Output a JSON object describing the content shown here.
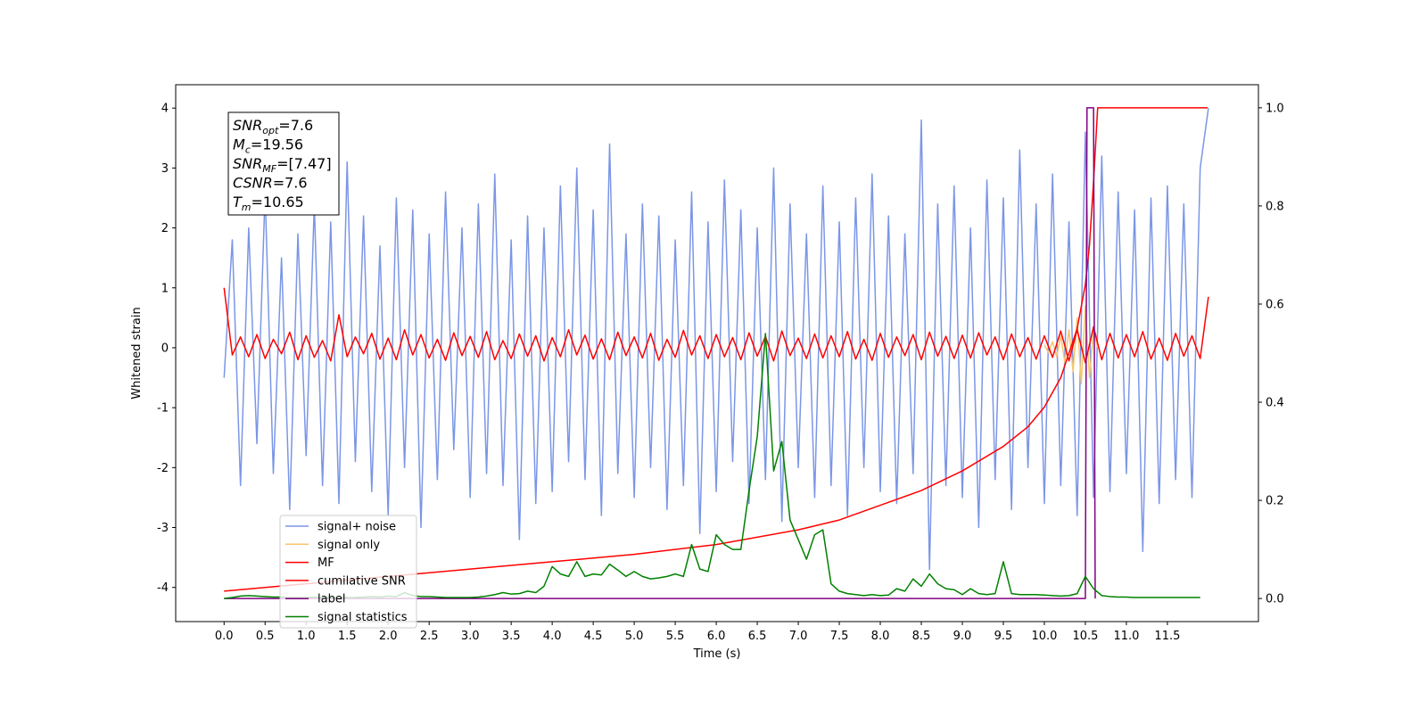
{
  "chart_data": {
    "type": "line",
    "xlabel": "Time (s)",
    "ylabel": "Whitened strain",
    "xlim": [
      -0.59,
      12.61
    ],
    "ylim": [
      -4.57,
      4.39
    ],
    "y2lim": [
      -0.047,
      1.047
    ],
    "xticks": [
      {
        "value": 0,
        "label": "0.0"
      },
      0.5,
      {
        "value": 1,
        "label": "1.0"
      },
      1.5,
      {
        "value": 2,
        "label": "2.0"
      },
      2.5,
      {
        "value": 3,
        "label": "3.0"
      },
      3.5,
      {
        "value": 4,
        "label": "4.0"
      },
      4.5,
      {
        "value": 5,
        "label": "5.0"
      },
      5.5,
      {
        "value": 6,
        "label": "6.0"
      },
      6.5,
      {
        "value": 7,
        "label": "7.0"
      },
      7.5,
      {
        "value": 8,
        "label": "8.0"
      },
      8.5,
      {
        "value": 9,
        "label": "9.0"
      },
      9.5,
      {
        "value": 10,
        "label": "10.0"
      },
      10.5,
      {
        "value": 11,
        "label": "11.0"
      },
      11.5
    ],
    "yticks": [
      -4,
      -3,
      -2,
      -1,
      0,
      1,
      2,
      3,
      4
    ],
    "y2ticks": [
      {
        "value": 0,
        "label": "0.0"
      },
      0.2,
      0.4,
      0.6,
      0.8,
      {
        "value": 1,
        "label": "1.0"
      }
    ],
    "grid": false,
    "legend": "lower left",
    "annotations": [
      {
        "symbol": "SNR",
        "subscript": "opt",
        "text": "=7.6"
      },
      {
        "symbol": "M",
        "subscript": "c",
        "text": "=19.56"
      },
      {
        "symbol": "SNR",
        "subscript": "MF",
        "text": "=[7.47]"
      },
      {
        "symbol": "CSNR",
        "text": "=7.6"
      },
      {
        "symbol": "T",
        "subscript": "m",
        "text": "=10.65"
      }
    ],
    "x": [
      0,
      0.1,
      0.2,
      0.3,
      0.4,
      0.5,
      0.6,
      0.7,
      0.8,
      0.9,
      1,
      1.1,
      1.2,
      1.3,
      1.4,
      1.5,
      1.6,
      1.7,
      1.8,
      1.9,
      2,
      2.1,
      2.2,
      2.3,
      2.4,
      2.5,
      2.6,
      2.7,
      2.8,
      2.9,
      3,
      3.1,
      3.2,
      3.3,
      3.4,
      3.5,
      3.6,
      3.7,
      3.8,
      3.9,
      4,
      4.1,
      4.2,
      4.3,
      4.4,
      4.5,
      4.6,
      4.7,
      4.8,
      4.9,
      5,
      5.1,
      5.2,
      5.3,
      5.4,
      5.5,
      5.6,
      5.7,
      5.8,
      5.9,
      6,
      6.1,
      6.2,
      6.3,
      6.4,
      6.5,
      6.6,
      6.7,
      6.8,
      6.9,
      7,
      7.1,
      7.2,
      7.3,
      7.4,
      7.5,
      7.6,
      7.7,
      7.8,
      7.9,
      8,
      8.1,
      8.2,
      8.3,
      8.4,
      8.5,
      8.6,
      8.7,
      8.8,
      8.9,
      9,
      9.1,
      9.2,
      9.3,
      9.4,
      9.5,
      9.6,
      9.7,
      9.8,
      9.9,
      10,
      10.1,
      10.2,
      10.3,
      10.4,
      10.5,
      10.6,
      10.7,
      10.8,
      10.9,
      11,
      11.1,
      11.2,
      11.3,
      11.4,
      11.5,
      11.6,
      11.7,
      11.8,
      11.9,
      12
    ],
    "series": [
      {
        "name": "signal+ noise",
        "color": "#7b96e6",
        "axis": "y",
        "values": [
          -0.5,
          1.8,
          -2.3,
          2.0,
          -1.6,
          2.6,
          -2.1,
          1.5,
          -2.7,
          1.9,
          -1.8,
          2.4,
          -2.3,
          2.1,
          -2.6,
          3.1,
          -1.9,
          2.2,
          -2.4,
          1.7,
          -2.8,
          2.5,
          -2.0,
          2.3,
          -3.0,
          1.9,
          -2.2,
          2.6,
          -1.7,
          2.0,
          -2.5,
          2.4,
          -2.1,
          2.9,
          -2.3,
          1.8,
          -3.2,
          2.2,
          -2.6,
          2.0,
          -2.4,
          2.7,
          -1.9,
          3.0,
          -2.2,
          2.3,
          -2.8,
          3.4,
          -2.1,
          1.9,
          -2.5,
          2.4,
          -2.0,
          2.2,
          -2.7,
          1.8,
          -2.3,
          2.6,
          -3.1,
          2.1,
          -2.4,
          2.8,
          -1.9,
          2.3,
          -2.6,
          2.0,
          -2.2,
          3.0,
          -2.9,
          2.4,
          -2.0,
          1.9,
          -2.5,
          2.7,
          -2.3,
          2.1,
          -2.8,
          2.5,
          -2.0,
          2.9,
          -2.4,
          2.2,
          -2.6,
          1.9,
          -2.1,
          3.8,
          -3.7,
          2.4,
          -2.3,
          2.7,
          -2.5,
          2.0,
          -3.0,
          2.8,
          -2.2,
          2.5,
          -2.7,
          3.3,
          -2.0,
          2.4,
          -2.6,
          2.9,
          -2.3,
          2.1,
          -2.8,
          3.6,
          -2.5,
          3.2,
          -2.4,
          2.6,
          -2.1,
          2.3,
          -3.4,
          2.5,
          -2.6,
          2.7,
          -2.2,
          2.4,
          -2.5,
          3.0,
          4.0
        ]
      },
      {
        "name": "signal only",
        "color": "#f5c56e",
        "axis": "y",
        "x": [
          10,
          10.05,
          10.1,
          10.15,
          10.2,
          10.25,
          10.3,
          10.35,
          10.4,
          10.45,
          10.5,
          10.55,
          10.6,
          10.65
        ],
        "values": [
          0.05,
          -0.08,
          0.1,
          -0.15,
          0.2,
          -0.25,
          0.3,
          -0.4,
          0.5,
          -0.6,
          0.7,
          -0.5,
          0.3,
          0.0
        ]
      },
      {
        "name": "MF",
        "color": "#ff0000",
        "axis": "y",
        "values": [
          1.0,
          -0.12,
          0.18,
          -0.15,
          0.22,
          -0.18,
          0.14,
          -0.1,
          0.26,
          -0.2,
          0.2,
          -0.16,
          0.12,
          -0.22,
          0.55,
          -0.15,
          0.18,
          -0.1,
          0.24,
          -0.19,
          0.16,
          -0.2,
          0.3,
          -0.12,
          0.22,
          -0.17,
          0.14,
          -0.21,
          0.25,
          -0.13,
          0.19,
          -0.16,
          0.27,
          -0.2,
          0.12,
          -0.18,
          0.23,
          -0.14,
          0.2,
          -0.22,
          0.17,
          -0.15,
          0.3,
          -0.12,
          0.21,
          -0.19,
          0.15,
          -0.2,
          0.26,
          -0.13,
          0.18,
          -0.17,
          0.24,
          -0.21,
          0.14,
          -0.16,
          0.29,
          -0.12,
          0.2,
          -0.18,
          0.22,
          -0.15,
          0.17,
          -0.2,
          0.25,
          -0.14,
          0.19,
          -0.22,
          0.28,
          -0.13,
          0.16,
          -0.18,
          0.23,
          -0.17,
          0.2,
          -0.15,
          0.27,
          -0.19,
          0.14,
          -0.21,
          0.24,
          -0.16,
          0.18,
          -0.13,
          0.22,
          -0.2,
          0.26,
          -0.14,
          0.19,
          -0.18,
          0.21,
          -0.17,
          0.25,
          -0.12,
          0.18,
          -0.2,
          0.23,
          -0.15,
          0.17,
          -0.19,
          0.2,
          -0.16,
          0.28,
          -0.22,
          0.3,
          -0.25,
          0.35,
          -0.2,
          0.24,
          -0.17,
          0.22,
          -0.15,
          0.27,
          -0.19,
          0.16,
          -0.21,
          0.24,
          -0.14,
          0.2,
          -0.18,
          0.85
        ]
      },
      {
        "name": "cumilative SNR",
        "color": "#ff0000",
        "axis": "y2",
        "x": [
          0,
          1,
          2,
          3,
          4,
          5,
          6,
          7,
          7.5,
          8,
          8.5,
          9,
          9.5,
          9.8,
          10,
          10.2,
          10.4,
          10.5,
          10.55,
          10.6,
          10.65,
          11.99
        ],
        "values": [
          0.015,
          0.03,
          0.045,
          0.06,
          0.075,
          0.09,
          0.11,
          0.14,
          0.16,
          0.19,
          0.22,
          0.26,
          0.31,
          0.35,
          0.39,
          0.45,
          0.55,
          0.64,
          0.72,
          0.85,
          1.0,
          1.0
        ]
      },
      {
        "name": "label",
        "color": "#800080",
        "axis": "y2",
        "x": [
          0,
          10.5,
          10.52,
          10.6,
          10.62
        ],
        "values": [
          0,
          0,
          1,
          1,
          0
        ]
      },
      {
        "name": "signal statistics",
        "color": "#008000",
        "axis": "y2",
        "x": [
          0,
          0.1,
          0.2,
          0.3,
          0.4,
          0.5,
          0.6,
          0.7,
          0.8,
          0.9,
          1,
          1.1,
          1.2,
          1.3,
          1.4,
          1.5,
          1.6,
          1.7,
          1.8,
          1.9,
          2,
          2.1,
          2.2,
          2.3,
          2.4,
          2.5,
          2.6,
          2.7,
          2.8,
          2.9,
          3,
          3.1,
          3.2,
          3.3,
          3.4,
          3.5,
          3.6,
          3.7,
          3.8,
          3.9,
          4,
          4.1,
          4.2,
          4.3,
          4.4,
          4.5,
          4.6,
          4.7,
          4.8,
          4.9,
          5,
          5.1,
          5.2,
          5.3,
          5.4,
          5.5,
          5.6,
          5.7,
          5.8,
          5.9,
          6,
          6.1,
          6.2,
          6.3,
          6.4,
          6.5,
          6.6,
          6.7,
          6.8,
          6.9,
          7,
          7.1,
          7.2,
          7.3,
          7.4,
          7.5,
          7.6,
          7.7,
          7.8,
          7.9,
          8,
          8.1,
          8.2,
          8.3,
          8.4,
          8.5,
          8.6,
          8.7,
          8.8,
          8.9,
          9,
          9.1,
          9.2,
          9.3,
          9.4,
          9.5,
          9.6,
          9.7,
          9.8,
          9.9,
          10,
          10.1,
          10.2,
          10.3,
          10.4,
          10.5,
          10.6,
          10.7,
          10.8,
          10.9,
          11,
          11.1,
          11.2,
          11.3,
          11.4,
          11.5,
          11.6,
          11.7,
          11.8,
          11.9
        ],
        "values": [
          0.0,
          0.002,
          0.005,
          0.006,
          0.005,
          0.004,
          0.003,
          0.003,
          0.002,
          0.002,
          0.002,
          0.003,
          0.002,
          0.002,
          0.003,
          0.002,
          0.002,
          0.003,
          0.004,
          0.003,
          0.005,
          0.004,
          0.012,
          0.006,
          0.004,
          0.004,
          0.003,
          0.002,
          0.002,
          0.002,
          0.002,
          0.003,
          0.005,
          0.008,
          0.012,
          0.009,
          0.01,
          0.015,
          0.012,
          0.025,
          0.065,
          0.05,
          0.045,
          0.075,
          0.045,
          0.05,
          0.048,
          0.07,
          0.058,
          0.045,
          0.055,
          0.045,
          0.04,
          0.042,
          0.045,
          0.05,
          0.045,
          0.11,
          0.06,
          0.055,
          0.13,
          0.11,
          0.1,
          0.1,
          0.22,
          0.33,
          0.54,
          0.26,
          0.32,
          0.16,
          0.12,
          0.08,
          0.13,
          0.14,
          0.03,
          0.015,
          0.01,
          0.008,
          0.006,
          0.008,
          0.006,
          0.007,
          0.02,
          0.015,
          0.04,
          0.025,
          0.05,
          0.03,
          0.02,
          0.018,
          0.008,
          0.02,
          0.01,
          0.008,
          0.01,
          0.075,
          0.01,
          0.008,
          0.008,
          0.008,
          0.007,
          0.006,
          0.005,
          0.006,
          0.01,
          0.045,
          0.02,
          0.006,
          0.004,
          0.003,
          0.003,
          0.002,
          0.002,
          0.002,
          0.002,
          0.002,
          0.002,
          0.002,
          0.002,
          0.002
        ]
      }
    ]
  }
}
